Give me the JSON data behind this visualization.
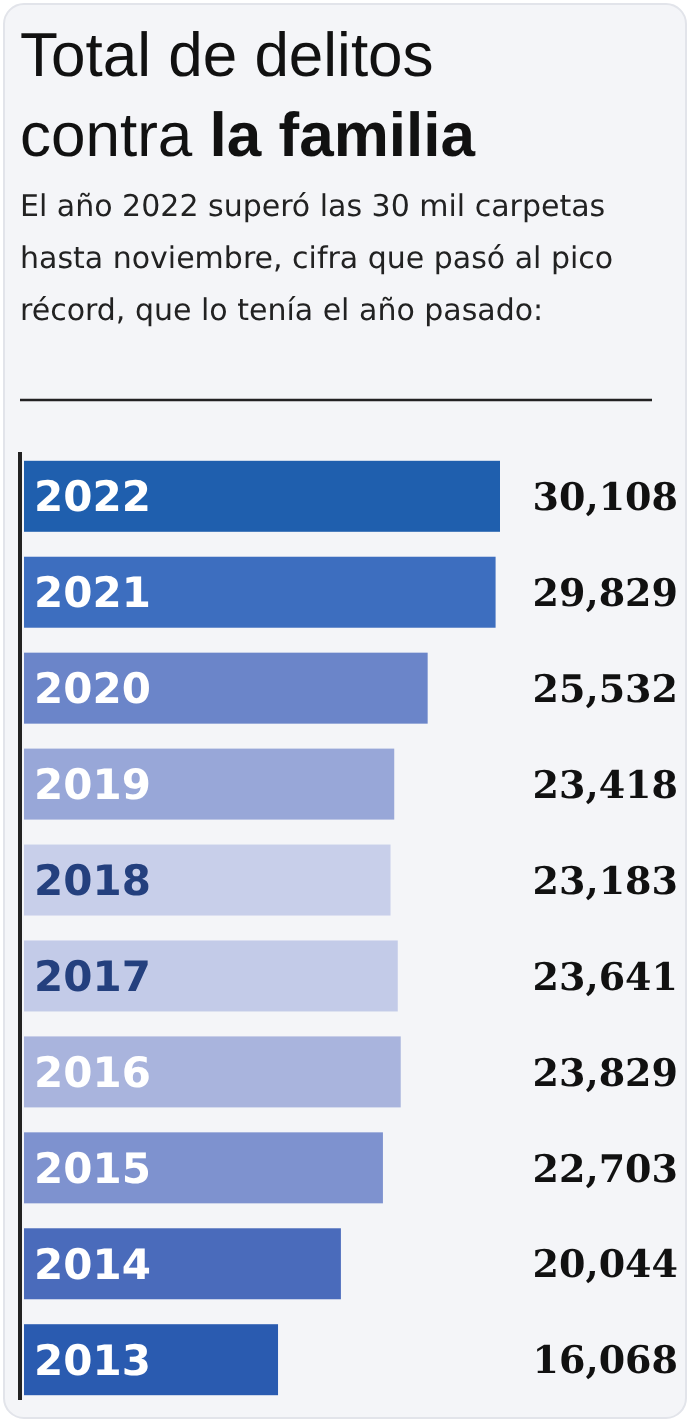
{
  "chart_data": {
    "type": "bar",
    "orientation": "horizontal",
    "title": "Total de delitos contra la familia",
    "subtitle": "El año 2022 superó las 30 mil carpetas hasta noviembre, cifra que pasó al pico récord, que lo tenía el año pasado:",
    "categories": [
      "2022",
      "2021",
      "2020",
      "2019",
      "2018",
      "2017",
      "2016",
      "2015",
      "2014",
      "2013"
    ],
    "values": [
      30108,
      29829,
      25532,
      23418,
      23183,
      23641,
      23829,
      22703,
      20044,
      16068
    ],
    "colors": [
      "#1f5fae",
      "#3d6ebf",
      "#6b85c9",
      "#98a7d8",
      "#c8cfea",
      "#c3cbe8",
      "#a9b4dd",
      "#7e92cf",
      "#4a6bbb",
      "#2a5bb0"
    ],
    "value_labels": [
      "30,108",
      "29,829",
      "25,532",
      "23,418",
      "23,183",
      "23,641",
      "23,829",
      "22,703",
      "20,044",
      "16,068"
    ]
  }
}
